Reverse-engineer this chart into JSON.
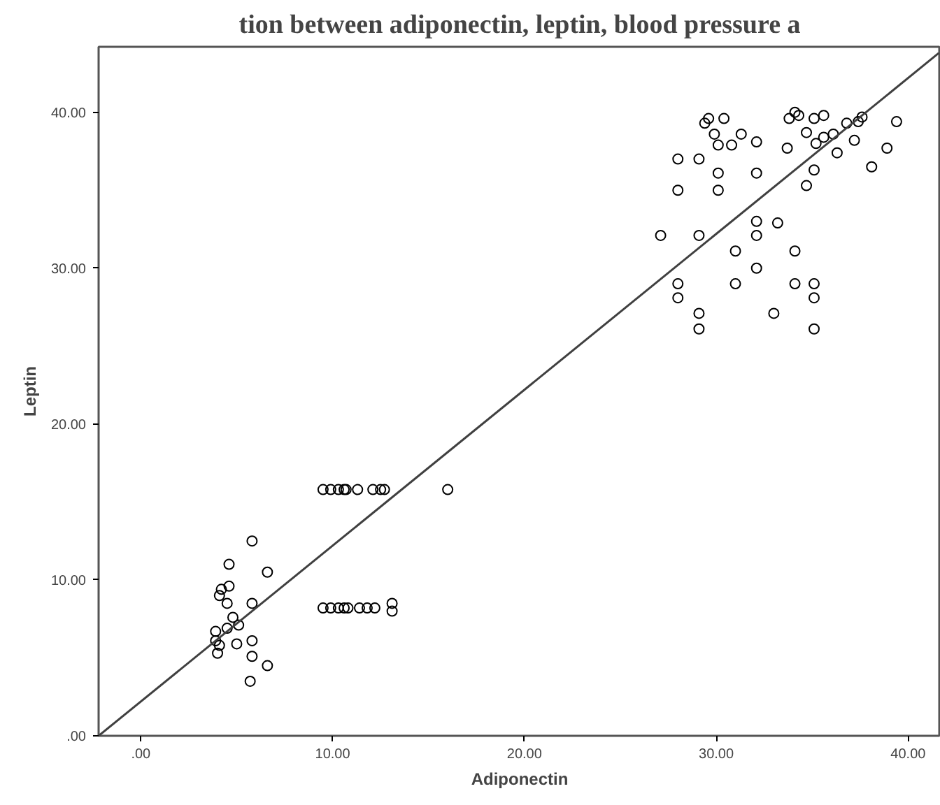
{
  "chart_data": {
    "type": "scatter",
    "title": "tion between adiponectin, leptin, blood pressure a",
    "xlabel": "Adiponectin",
    "ylabel": "Leptin",
    "xlim": [
      -2.2,
      41.7
    ],
    "ylim": [
      0,
      44.2
    ],
    "xticks": [
      {
        "value": 0,
        "label": ".00"
      },
      {
        "value": 10,
        "label": "10.00"
      },
      {
        "value": 20,
        "label": "20.00"
      },
      {
        "value": 30,
        "label": "30.00"
      },
      {
        "value": 40,
        "label": "40.00"
      }
    ],
    "yticks": [
      {
        "value": 0,
        "label": ".00"
      },
      {
        "value": 10,
        "label": "10.00"
      },
      {
        "value": 20,
        "label": "20.00"
      },
      {
        "value": 30,
        "label": "30.00"
      },
      {
        "value": 40,
        "label": "40.00"
      }
    ],
    "grid": false,
    "marker": "circle",
    "series": [
      {
        "color": "#000000",
        "x": [
          9.5,
          9.9,
          10.3,
          10.6,
          10.7,
          11.3,
          12.1,
          12.5,
          12.7,
          16.0,
          9.5,
          9.9,
          10.3,
          10.6,
          10.8,
          11.4,
          11.8,
          12.2,
          13.1,
          13.1,
          5.8,
          4.6,
          6.6,
          4.6,
          4.2,
          4.1,
          4.5,
          5.8,
          4.8,
          5.1,
          3.9,
          4.5,
          3.9,
          4.1,
          5.0,
          4.0,
          5.8,
          5.8,
          6.6,
          5.7,
          27.1,
          29.1,
          28.0,
          28.0,
          29.1,
          29.1,
          31.0,
          31.0,
          32.1,
          32.1,
          32.1,
          33.2,
          34.1,
          34.1,
          33.0,
          35.1,
          35.1,
          35.1,
          28.0,
          29.1,
          28.0,
          30.1,
          30.1,
          32.1,
          29.4,
          29.6,
          30.4,
          29.9,
          30.1,
          30.8,
          31.3,
          32.1,
          33.7,
          33.8,
          34.1,
          34.3,
          35.1,
          35.6,
          34.7,
          35.2,
          35.6,
          36.1,
          36.8,
          37.4,
          37.6,
          39.4,
          37.2,
          38.9,
          36.3,
          38.1,
          35.1,
          34.7
        ],
        "values": [
          15.8,
          15.8,
          15.8,
          15.8,
          15.8,
          15.8,
          15.8,
          15.8,
          15.8,
          15.8,
          8.2,
          8.2,
          8.2,
          8.2,
          8.2,
          8.2,
          8.2,
          8.2,
          8.5,
          8.0,
          12.5,
          11.0,
          10.5,
          9.6,
          9.4,
          9.0,
          8.5,
          8.5,
          7.6,
          7.1,
          6.7,
          6.9,
          6.1,
          5.8,
          5.9,
          5.3,
          6.1,
          5.1,
          4.5,
          3.5,
          32.1,
          32.1,
          29.0,
          28.1,
          27.1,
          26.1,
          31.1,
          29.0,
          33.0,
          32.1,
          30.0,
          32.9,
          31.1,
          29.0,
          27.1,
          29.0,
          28.1,
          26.1,
          37.0,
          37.0,
          35.0,
          36.1,
          35.0,
          36.1,
          39.3,
          39.6,
          39.6,
          38.6,
          37.9,
          37.9,
          38.6,
          38.1,
          37.7,
          39.6,
          40.0,
          39.8,
          39.6,
          39.8,
          38.7,
          38.0,
          38.4,
          38.6,
          39.3,
          39.4,
          39.7,
          39.4,
          38.2,
          37.7,
          37.4,
          36.5,
          36.3,
          35.3
        ]
      },
      {
        "type": "line",
        "color": "#404040",
        "x": [
          -2.2,
          41.6
        ],
        "values": [
          0,
          43.8
        ],
        "marker": "none",
        "line_style": "solid"
      }
    ]
  }
}
